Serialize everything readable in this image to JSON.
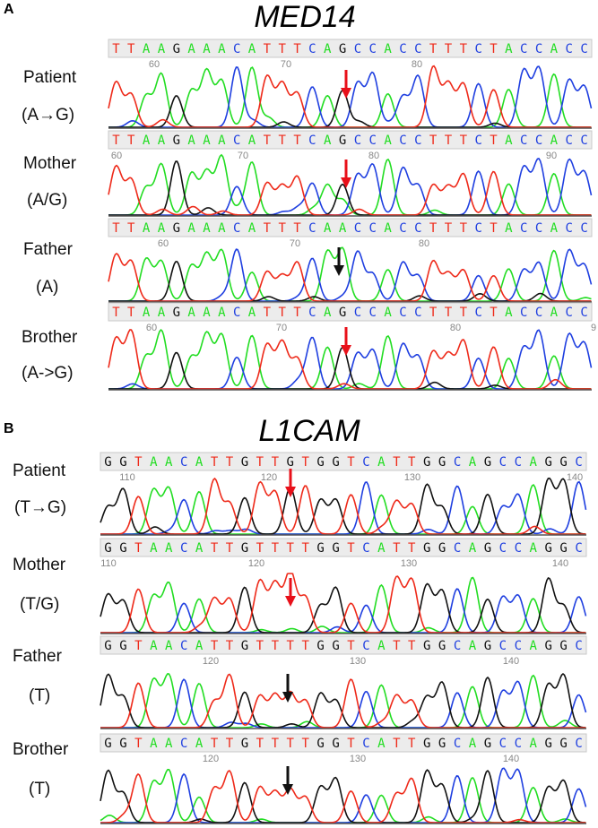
{
  "panels": [
    {
      "letter": "A",
      "gene": "MED14",
      "rows": [
        {
          "label": "Patient",
          "sub": "(A→G)",
          "seq": "TTAAGAAACATTTCAGCCACCTTTCTACCACC",
          "ticks": [
            "60",
            "70",
            "80"
          ],
          "arrow": "red"
        },
        {
          "label": "Mother",
          "sub": "(A/G)",
          "seq": "TTAAGAAACATTTCAGCCACCTTTCTACCACC",
          "ticks": [
            "60",
            "70",
            "80",
            "90"
          ],
          "arrow": "red"
        },
        {
          "label": "Father",
          "sub": "(A)",
          "seq": "TTAAGAAACATTTCAACCACCTTTCTACCACC",
          "ticks": [
            "60",
            "70",
            "80"
          ],
          "arrow": "black"
        },
        {
          "label": "Brother",
          "sub": "(A->G)",
          "seq": "TTAAGAAACATTTCAGCCACCTTTCTACCACC",
          "ticks": [
            "60",
            "70",
            "80",
            "9"
          ],
          "arrow": "red"
        }
      ]
    },
    {
      "letter": "B",
      "gene": "L1CAM",
      "rows": [
        {
          "label": "Patient",
          "sub": "(T→G)",
          "seq": "GGTAACATTGTTGTGGTCATTGGCAGCCAGGC",
          "ticks": [
            "110",
            "120",
            "130",
            "140"
          ],
          "arrow": "red"
        },
        {
          "label": "Mother",
          "sub": "(T/G)",
          "seq": "GGTAACATTGTTTTGGTCATTGGCAGCCAGGC",
          "ticks": [
            "110",
            "120",
            "130",
            "140"
          ],
          "arrow": "red"
        },
        {
          "label": "Father",
          "sub": "(T)",
          "seq": "GGTAACATTGTTTTGGTCATTGGCAGCCAGGC",
          "ticks": [
            "120",
            "130",
            "140"
          ],
          "arrow": "black"
        },
        {
          "label": "Brother",
          "sub": "(T)",
          "seq": "GGTAACATTGTTTTGGTCATTGGCAGCCAGGC",
          "ticks": [
            "120",
            "130",
            "140"
          ],
          "arrow": "black"
        }
      ]
    }
  ],
  "colors": {
    "A": "#22dd22",
    "C": "#1f3fe0",
    "G": "#111111",
    "T": "#ee2a1a",
    "arrow_red": "#e8101a",
    "arrow_black": "#111111"
  }
}
